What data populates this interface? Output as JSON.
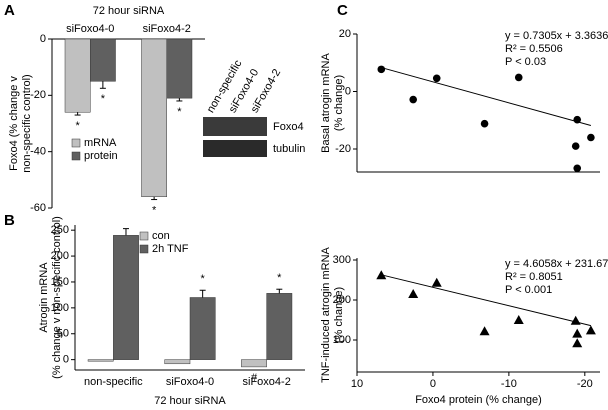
{
  "chart_data": [
    {
      "type": "bar",
      "panel": "A",
      "title": "72 hour siRNA",
      "categories": [
        "siFoxo4-0",
        "siFoxo4-2"
      ],
      "ylabel": [
        "Foxo4 (% change v",
        "non-specific control)"
      ],
      "ylim": [
        -60,
        0
      ],
      "yticks": [
        0,
        -20,
        -40,
        -60
      ],
      "series": [
        {
          "name": "mRNA",
          "color": "#c0c0c0",
          "values": [
            -26,
            -56
          ],
          "errors": [
            1,
            1
          ],
          "markers": [
            "*",
            "*"
          ]
        },
        {
          "name": "protein",
          "color": "#606060",
          "values": [
            -15,
            -21
          ],
          "errors": [
            2.5,
            1
          ],
          "markers": [
            "*",
            "*"
          ]
        }
      ],
      "blot": {
        "lanes": [
          "non-specific",
          "siFoxo4-0",
          "siFoxo4-2"
        ],
        "rows": [
          "Foxo4",
          "tubulin"
        ]
      }
    },
    {
      "type": "bar",
      "panel": "B",
      "categories": [
        "non-specific",
        "siFoxo4-0",
        "siFoxo4-2"
      ],
      "xlabel": "72 hour siRNA",
      "ylabel": [
        "Atrogin mRNA",
        "(% change v non-specific control)"
      ],
      "ylim": [
        -20,
        260
      ],
      "yticks": [
        0,
        50,
        100,
        150,
        200,
        250
      ],
      "series": [
        {
          "name": "con",
          "color": "#c0c0c0",
          "values": [
            -3,
            -8,
            -14
          ],
          "markers": [
            null,
            null,
            "#"
          ]
        },
        {
          "name": "2h TNF",
          "color": "#606060",
          "values": [
            240,
            120,
            128
          ],
          "errors": [
            13,
            14,
            8
          ],
          "markers": [
            null,
            "*",
            "*"
          ]
        }
      ]
    },
    {
      "type": "scatter",
      "panel": "C",
      "marker": "circle",
      "ylabel": [
        "Basal atrogin mRNA",
        "(% change)"
      ],
      "xlim": [
        10,
        -22
      ],
      "ylim": [
        -28,
        20
      ],
      "yticks": [
        20,
        0,
        -20
      ],
      "x": [
        6.8,
        2.6,
        -0.5,
        -6.8,
        -11.3,
        -18.8,
        -19,
        -20.8,
        -19
      ],
      "y": [
        7.7,
        -2.8,
        4.6,
        -11.2,
        4.9,
        -19,
        -9.8,
        -16,
        -26.7
      ],
      "trendline": {
        "slope": 0.7305,
        "intercept": 3.3636
      },
      "annotations": [
        "y = 0.7305x + 3.3636",
        "R² = 0.5506",
        "P < 0.03"
      ]
    },
    {
      "type": "scatter",
      "marker": "triangle",
      "ylabel": [
        "TNF-induced atrogin mRNA",
        "(% change)"
      ],
      "xlabel": "Foxo4 protein (% change)",
      "xlim": [
        10,
        -22
      ],
      "xticks": [
        10,
        0,
        -10,
        -20
      ],
      "ylim": [
        20,
        305
      ],
      "yticks": [
        300,
        200,
        100
      ],
      "x": [
        6.8,
        2.6,
        -0.5,
        -6.8,
        -11.3,
        -18.8,
        -19,
        -20.8,
        -19
      ],
      "y": [
        262,
        215,
        243,
        122,
        150,
        148,
        92,
        124,
        116
      ],
      "trendline": {
        "slope": 4.6058,
        "intercept": 231.67
      },
      "annotations": [
        "y = 4.6058x + 231.67",
        "R² = 0.8051",
        "P < 0.001"
      ]
    }
  ]
}
